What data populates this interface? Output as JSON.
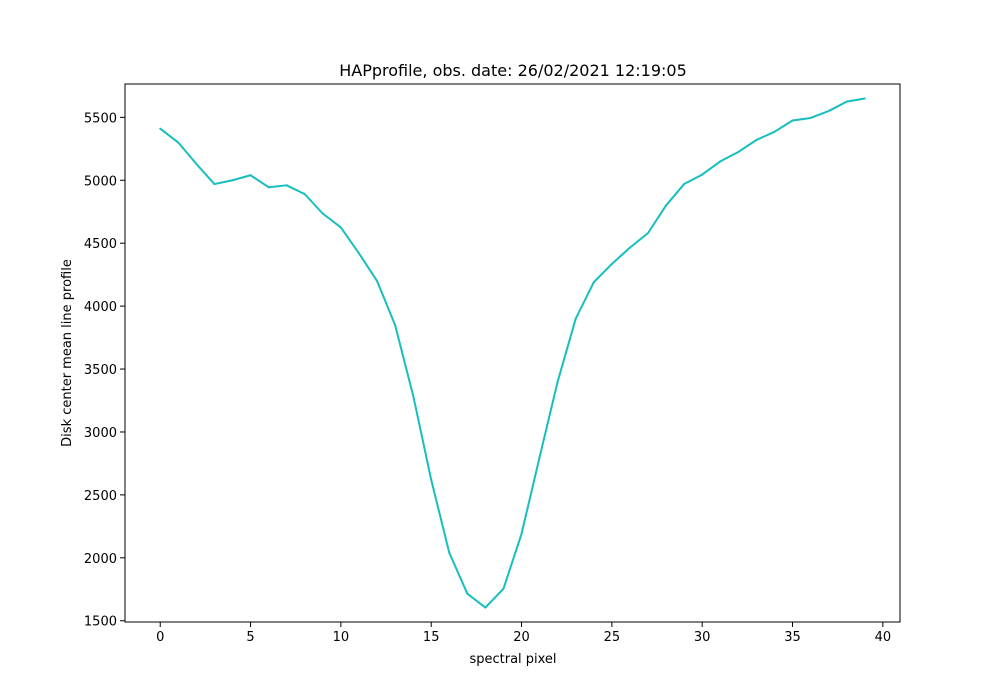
{
  "chart_data": {
    "type": "line",
    "title": "HAPprofile, obs. date: 26/02/2021 12:19:05",
    "xlabel": "spectral pixel",
    "ylabel": "Disk center mean line profile",
    "xlim": [
      -1.95,
      40.95
    ],
    "ylim": [
      1490,
      5765
    ],
    "xticks": [
      0,
      5,
      10,
      15,
      20,
      25,
      30,
      35,
      40
    ],
    "yticks": [
      1500,
      2000,
      2500,
      3000,
      3500,
      4000,
      4500,
      5000,
      5500
    ],
    "grid": false,
    "legend": "none",
    "series": [
      {
        "color": "#17bebf",
        "x": [
          0,
          1,
          2,
          3,
          4,
          5,
          6,
          7,
          8,
          9,
          10,
          11,
          12,
          13,
          14,
          15,
          16,
          17,
          18,
          19,
          20,
          21,
          22,
          23,
          24,
          25,
          26,
          27,
          28,
          29,
          30,
          31,
          32,
          33,
          34,
          35,
          36,
          37,
          38,
          39
        ],
        "y": [
          5410,
          5300,
          5130,
          4970,
          5000,
          5040,
          4945,
          4960,
          4890,
          4735,
          4625,
          4420,
          4200,
          3850,
          3290,
          2620,
          2040,
          1715,
          1605,
          1755,
          2190,
          2800,
          3400,
          3900,
          4190,
          4335,
          4465,
          4580,
          4800,
          4970,
          5045,
          5150,
          5225,
          5320,
          5385,
          5475,
          5495,
          5550,
          5625,
          5650
        ]
      }
    ]
  }
}
